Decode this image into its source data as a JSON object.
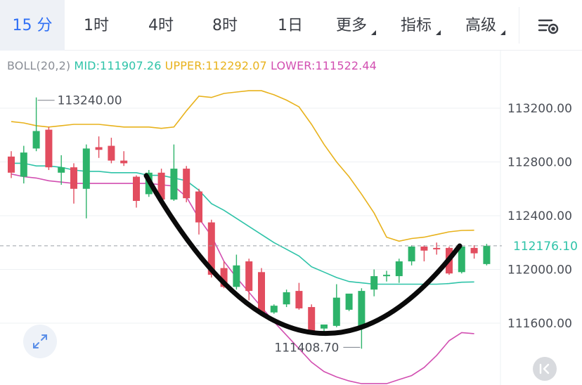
{
  "tabs": [
    {
      "label": "15 分",
      "active": true
    },
    {
      "label": "1时"
    },
    {
      "label": "4时"
    },
    {
      "label": "8时"
    },
    {
      "label": "1日"
    },
    {
      "label": "更多",
      "dropdown": true
    },
    {
      "label": "指标",
      "dropdown": true
    },
    {
      "label": "高级",
      "dropdown": true
    }
  ],
  "toolbar": {
    "settings_icon": "chart-settings-icon"
  },
  "legend": {
    "name": "BOLL(20,2)",
    "mid": "MID:111907.26",
    "upper": "UPPER:112292.07",
    "lower": "LOWER:111522.44"
  },
  "colors": {
    "up": "#2db36a",
    "down": "#e24d5f",
    "mid": "#2ec3a8",
    "upper": "#e8b21c",
    "lower": "#d24fb1",
    "accent": "#2f6ff5"
  },
  "chart_data": {
    "type": "candlestick",
    "y_ticks": [
      113200.0,
      112800.0,
      112400.0,
      112000.0,
      111600.0
    ],
    "y_tick_labels": [
      "113200.00",
      "112800.00",
      "112400.00",
      "112000.00",
      "111600.00"
    ],
    "current_price": "112176.10",
    "high_label": "113240.00",
    "low_label": "111408.70",
    "candles": [
      {
        "o": 112840,
        "h": 112880,
        "c": 112720,
        "l": 112680
      },
      {
        "o": 112690,
        "h": 112920,
        "c": 112870,
        "l": 112640
      },
      {
        "o": 112900,
        "h": 113280,
        "c": 113030,
        "l": 112880
      },
      {
        "o": 113040,
        "h": 113060,
        "c": 112760,
        "l": 112740
      },
      {
        "o": 112720,
        "h": 112850,
        "c": 112760,
        "l": 112630
      },
      {
        "o": 112760,
        "h": 112790,
        "c": 112600,
        "l": 112490
      },
      {
        "o": 112600,
        "h": 112930,
        "c": 112900,
        "l": 112380
      },
      {
        "o": 112910,
        "h": 112990,
        "c": 112890,
        "l": 112830
      },
      {
        "o": 112920,
        "h": 112980,
        "c": 112810,
        "l": 112790
      },
      {
        "o": 112810,
        "h": 112880,
        "c": 112790,
        "l": 112770
      },
      {
        "o": 112690,
        "h": 112700,
        "c": 112510,
        "l": 112460
      },
      {
        "o": 112560,
        "h": 112740,
        "c": 112720,
        "l": 112540
      },
      {
        "o": 112720,
        "h": 112750,
        "c": 112520,
        "l": 112510
      },
      {
        "o": 112520,
        "h": 112930,
        "c": 112750,
        "l": 112510
      },
      {
        "o": 112750,
        "h": 112770,
        "c": 112530,
        "l": 112500
      },
      {
        "o": 112580,
        "h": 112600,
        "c": 112350,
        "l": 112260
      },
      {
        "o": 112350,
        "h": 112370,
        "c": 111960,
        "l": 111940
      },
      {
        "o": 112010,
        "h": 112060,
        "c": 111870,
        "l": 111860
      },
      {
        "o": 111870,
        "h": 112110,
        "c": 112030,
        "l": 111850
      },
      {
        "o": 112060,
        "h": 112080,
        "c": 111840,
        "l": 111770
      },
      {
        "o": 111980,
        "h": 112010,
        "c": 111670,
        "l": 111660
      },
      {
        "o": 111680,
        "h": 111740,
        "c": 111730,
        "l": 111670
      },
      {
        "o": 111740,
        "h": 111850,
        "c": 111830,
        "l": 111720
      },
      {
        "o": 111840,
        "h": 111900,
        "c": 111710,
        "l": 111700
      },
      {
        "o": 111720,
        "h": 111740,
        "c": 111540,
        "l": 111530
      },
      {
        "o": 111560,
        "h": 111580,
        "c": 111590,
        "l": 111510
      },
      {
        "o": 111580,
        "h": 111890,
        "c": 111790,
        "l": 111570
      },
      {
        "o": 111700,
        "h": 111810,
        "c": 111820,
        "l": 111690
      },
      {
        "o": 111580,
        "h": 111860,
        "c": 111840,
        "l": 111410
      },
      {
        "o": 111850,
        "h": 112000,
        "c": 111950,
        "l": 111800
      },
      {
        "o": 111950,
        "h": 111990,
        "c": 111960,
        "l": 111910
      },
      {
        "o": 111950,
        "h": 112080,
        "c": 112060,
        "l": 111900
      },
      {
        "o": 112060,
        "h": 112180,
        "c": 112170,
        "l": 112030
      },
      {
        "o": 112170,
        "h": 112180,
        "c": 112140,
        "l": 112060
      },
      {
        "o": 112160,
        "h": 112200,
        "c": 112150,
        "l": 112110
      },
      {
        "o": 112160,
        "h": 112170,
        "c": 111970,
        "l": 111960
      },
      {
        "o": 111980,
        "h": 112180,
        "c": 112170,
        "l": 111970
      },
      {
        "o": 112160,
        "h": 112180,
        "c": 112120,
        "l": 112080
      },
      {
        "o": 112040,
        "h": 112190,
        "c": 112176,
        "l": 112030
      }
    ],
    "mid": [
      112790,
      112790,
      112770,
      112770,
      112760,
      112740,
      112730,
      112730,
      112720,
      112720,
      112720,
      112700,
      112700,
      112680,
      112660,
      112590,
      112490,
      112440,
      112380,
      112320,
      112260,
      112200,
      112150,
      112100,
      112020,
      111980,
      111940,
      111910,
      111900,
      111890,
      111890,
      111890,
      111890,
      111890,
      111890,
      111895,
      111905,
      111907
    ],
    "upper": [
      113100,
      113090,
      113070,
      113060,
      113070,
      113080,
      113080,
      113080,
      113070,
      113060,
      113060,
      113060,
      113050,
      113060,
      113180,
      113290,
      113280,
      113310,
      113320,
      113330,
      113330,
      113300,
      113260,
      113210,
      113080,
      112930,
      112800,
      112690,
      112560,
      112420,
      112240,
      112210,
      112230,
      112240,
      112260,
      112280,
      112290,
      112292
    ],
    "lower": [
      112710,
      112690,
      112680,
      112660,
      112650,
      112640,
      112640,
      112640,
      112640,
      112640,
      112640,
      112640,
      112630,
      112620,
      112540,
      112380,
      112250,
      112060,
      111940,
      111830,
      111720,
      111610,
      111510,
      111410,
      111310,
      111240,
      111200,
      111170,
      111150,
      111150,
      111150,
      111180,
      111210,
      111270,
      111360,
      111470,
      111530,
      111522
    ]
  }
}
